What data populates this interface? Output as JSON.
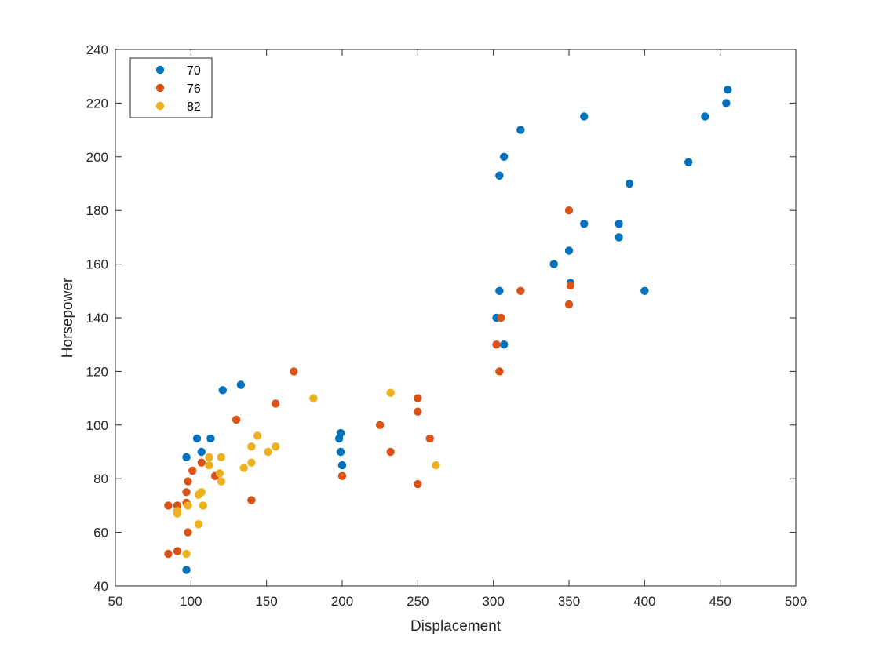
{
  "chart_data": {
    "type": "scatter",
    "title": "",
    "xlabel": "Displacement",
    "ylabel": "Horsepower",
    "xlim": [
      50,
      500
    ],
    "ylim": [
      40,
      240
    ],
    "xticks": [
      50,
      100,
      150,
      200,
      250,
      300,
      350,
      400,
      450,
      500
    ],
    "yticks": [
      40,
      60,
      80,
      100,
      120,
      140,
      160,
      180,
      200,
      220,
      240
    ],
    "grid": false,
    "legend_position": "top-left",
    "series": [
      {
        "name": "70",
        "color": "#0072BD",
        "points": [
          [
            97,
            46
          ],
          [
            97,
            88
          ],
          [
            104,
            95
          ],
          [
            107,
            90
          ],
          [
            113,
            95
          ],
          [
            121,
            113
          ],
          [
            133,
            115
          ],
          [
            198,
            95
          ],
          [
            199,
            97
          ],
          [
            199,
            90
          ],
          [
            200,
            85
          ],
          [
            302,
            140
          ],
          [
            304,
            150
          ],
          [
            304,
            193
          ],
          [
            307,
            200
          ],
          [
            307,
            130
          ],
          [
            318,
            210
          ],
          [
            340,
            160
          ],
          [
            350,
            165
          ],
          [
            351,
            153
          ],
          [
            360,
            215
          ],
          [
            360,
            175
          ],
          [
            383,
            175
          ],
          [
            383,
            170
          ],
          [
            390,
            190
          ],
          [
            400,
            150
          ],
          [
            429,
            198
          ],
          [
            440,
            215
          ],
          [
            454,
            220
          ],
          [
            455,
            225
          ]
        ]
      },
      {
        "name": "76",
        "color": "#D95319",
        "points": [
          [
            85,
            52
          ],
          [
            85,
            70
          ],
          [
            91,
            53
          ],
          [
            91,
            70
          ],
          [
            97,
            75
          ],
          [
            97,
            71
          ],
          [
            98,
            79
          ],
          [
            98,
            60
          ],
          [
            101,
            83
          ],
          [
            107,
            86
          ],
          [
            116,
            81
          ],
          [
            130,
            102
          ],
          [
            140,
            72
          ],
          [
            156,
            108
          ],
          [
            168,
            120
          ],
          [
            200,
            81
          ],
          [
            225,
            100
          ],
          [
            232,
            90
          ],
          [
            250,
            110
          ],
          [
            250,
            105
          ],
          [
            250,
            78
          ],
          [
            258,
            95
          ],
          [
            302,
            130
          ],
          [
            304,
            120
          ],
          [
            305,
            140
          ],
          [
            318,
            150
          ],
          [
            350,
            180
          ],
          [
            350,
            145
          ],
          [
            351,
            152
          ]
        ]
      },
      {
        "name": "82",
        "color": "#EDB120",
        "points": [
          [
            91,
            67
          ],
          [
            91,
            68
          ],
          [
            97,
            52
          ],
          [
            98,
            70
          ],
          [
            105,
            74
          ],
          [
            105,
            63
          ],
          [
            107,
            75
          ],
          [
            108,
            70
          ],
          [
            112,
            88
          ],
          [
            112,
            85
          ],
          [
            119,
            82
          ],
          [
            120,
            88
          ],
          [
            120,
            79
          ],
          [
            135,
            84
          ],
          [
            140,
            92
          ],
          [
            140,
            86
          ],
          [
            144,
            96
          ],
          [
            151,
            90
          ],
          [
            156,
            92
          ],
          [
            181,
            110
          ],
          [
            232,
            112
          ],
          [
            262,
            85
          ]
        ]
      }
    ]
  }
}
